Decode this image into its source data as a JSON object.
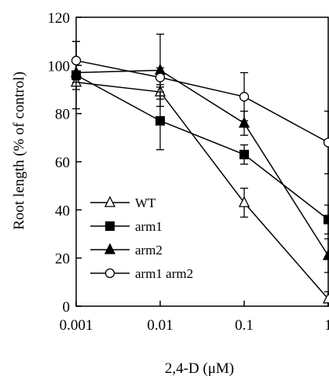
{
  "chart_data": {
    "type": "line",
    "x": [
      0.001,
      0.01,
      0.1,
      1
    ],
    "x_tick_labels": [
      "0.001",
      "0.01",
      "0.1",
      "1"
    ],
    "x_scale": "log",
    "xlim": [
      0.001,
      1
    ],
    "xlabel": "2,4-D (μM)",
    "ylabel": "Root length (% of control)",
    "ylim": [
      0,
      120
    ],
    "y_ticks": [
      0,
      20,
      40,
      60,
      80,
      100,
      120
    ],
    "y_tick_labels": [
      "0",
      "20",
      "40",
      "60",
      "80",
      "100",
      "120"
    ],
    "grid": false,
    "legend_position": "lower-left",
    "series": [
      {
        "name": "WT",
        "marker": "triangle-open",
        "values": [
          93,
          89,
          43,
          3
        ],
        "errors": [
          3,
          3,
          6,
          3
        ]
      },
      {
        "name": "arm1",
        "marker": "square-filled",
        "values": [
          96,
          77,
          63,
          36
        ],
        "errors": [
          14,
          12,
          4,
          6
        ]
      },
      {
        "name": "arm2",
        "marker": "triangle-filled",
        "values": [
          97,
          98,
          76,
          21
        ],
        "errors": [
          4,
          15,
          5,
          7
        ]
      },
      {
        "name": "arm1 arm2",
        "marker": "circle-open",
        "values": [
          102,
          95,
          87,
          68
        ],
        "errors": [
          8,
          4,
          10,
          13
        ]
      }
    ]
  }
}
